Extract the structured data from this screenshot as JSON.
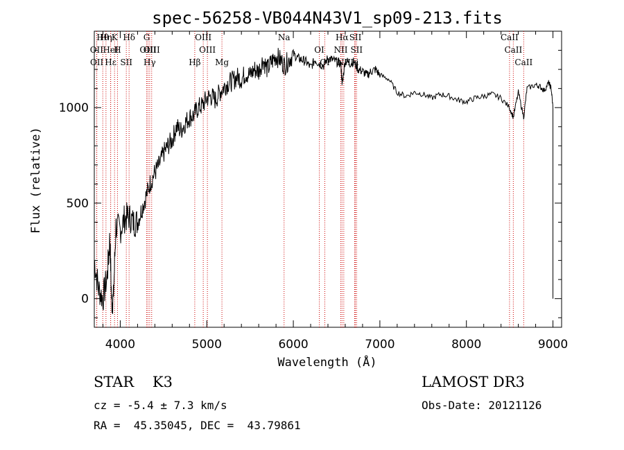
{
  "chart_data": {
    "type": "line",
    "title": "spec-56258-VB044N43V1_sp09-213.fits",
    "xlabel": "Wavelength (Å)",
    "ylabel": "Flux (relative)",
    "xlim": [
      3700,
      9100
    ],
    "ylim": [
      -150,
      1400
    ],
    "x_ticks": [
      4000,
      5000,
      6000,
      7000,
      8000,
      9000
    ],
    "y_ticks": [
      0,
      500,
      1000
    ],
    "spectrum": {
      "x": [
        3700,
        3750,
        3800,
        3850,
        3880,
        3900,
        3920,
        3950,
        4000,
        4050,
        4100,
        4150,
        4200,
        4250,
        4300,
        4350,
        4400,
        4450,
        4500,
        4550,
        4600,
        4650,
        4700,
        4750,
        4800,
        4850,
        4900,
        4950,
        5000,
        5050,
        5100,
        5150,
        5200,
        5250,
        5300,
        5350,
        5400,
        5450,
        5500,
        5550,
        5600,
        5650,
        5700,
        5750,
        5800,
        5850,
        5900,
        5950,
        6000,
        6050,
        6100,
        6150,
        6200,
        6250,
        6300,
        6350,
        6400,
        6450,
        6500,
        6550,
        6563,
        6600,
        6650,
        6700,
        6750,
        6800,
        6850,
        6900,
        6950,
        7000,
        7100,
        7200,
        7300,
        7400,
        7500,
        7600,
        7700,
        7800,
        7900,
        8000,
        8100,
        8200,
        8300,
        8400,
        8498,
        8542,
        8600,
        8662,
        8700,
        8800,
        8850,
        8900,
        8950,
        8980,
        9000
      ],
      "flux": [
        200,
        50,
        0,
        120,
        320,
        -20,
        0,
        380,
        360,
        420,
        430,
        400,
        400,
        470,
        540,
        610,
        660,
        700,
        760,
        800,
        830,
        900,
        880,
        920,
        950,
        960,
        1000,
        1010,
        1050,
        1060,
        1040,
        1080,
        1110,
        1130,
        1140,
        1160,
        1150,
        1180,
        1170,
        1200,
        1190,
        1250,
        1200,
        1240,
        1270,
        1250,
        1220,
        1250,
        1280,
        1260,
        1250,
        1240,
        1210,
        1250,
        1230,
        1220,
        1260,
        1250,
        1240,
        1230,
        1120,
        1250,
        1230,
        1240,
        1200,
        1190,
        1170,
        1190,
        1200,
        1170,
        1150,
        1080,
        1060,
        1080,
        1070,
        1050,
        1070,
        1060,
        1040,
        1030,
        1050,
        1060,
        1070,
        1050,
        1000,
        950,
        1080,
        950,
        1100,
        1120,
        1110,
        1090,
        1130,
        1100,
        1000
      ]
    },
    "lines": [
      {
        "label": "Hθ",
        "wl": 3798
      },
      {
        "label": "OII",
        "wl": 3727
      },
      {
        "label": "OII",
        "wl": 3729
      },
      {
        "label": "Hη",
        "wl": 3835
      },
      {
        "label": "HeI",
        "wl": 3889
      },
      {
        "label": "Hε",
        "wl": 3889
      },
      {
        "label": "K",
        "wl": 3934
      },
      {
        "label": "H",
        "wl": 3968
      },
      {
        "label": "SII",
        "wl": 4070
      },
      {
        "label": "Hδ",
        "wl": 4102
      },
      {
        "label": "OIII",
        "wl": 4320
      },
      {
        "label": "Hγ",
        "wl": 4340
      },
      {
        "label": "G",
        "wl": 4305
      },
      {
        "label": "OIII",
        "wl": 4363
      },
      {
        "label": "Hβ",
        "wl": 4861
      },
      {
        "label": "OIII",
        "wl": 4959
      },
      {
        "label": "OIII",
        "wl": 5007
      },
      {
        "label": "Mg",
        "wl": 5175
      },
      {
        "label": "Na",
        "wl": 5893
      },
      {
        "label": "OI",
        "wl": 6300
      },
      {
        "label": "OI",
        "wl": 6364
      },
      {
        "label": "Hα",
        "wl": 6563
      },
      {
        "label": "NII",
        "wl": 6548
      },
      {
        "label": "NII",
        "wl": 6583
      },
      {
        "label": "SII",
        "wl": 6717
      },
      {
        "label": "SII",
        "wl": 6731
      },
      {
        "label": "Li",
        "wl": 6708
      },
      {
        "label": "CaII",
        "wl": 8498
      },
      {
        "label": "CaII",
        "wl": 8542
      },
      {
        "label": "CaII",
        "wl": 8662
      }
    ]
  },
  "info": {
    "class_line": "STAR    K3",
    "cz_line": "cz = -5.4 ± 7.3 km/s",
    "coords_line": "RA =  45.35045, DEC =  43.79861",
    "survey": "LAMOST DR3",
    "obs_date": "Obs-Date: 20121126"
  }
}
